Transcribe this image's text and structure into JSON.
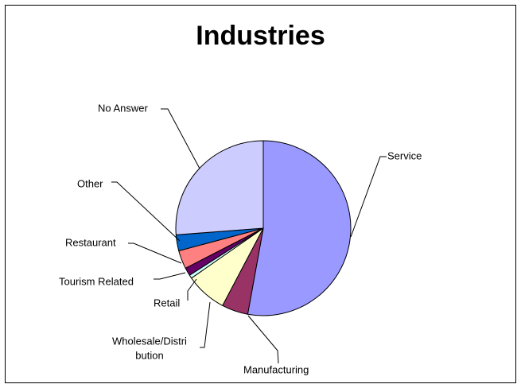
{
  "chart_data": {
    "type": "pie",
    "title": "Industries",
    "categories": [
      "Service",
      "Manufacturing",
      "Wholesale/Distribution",
      "Retail",
      "Tourism Related",
      "Restaurant",
      "Other",
      "No Answer"
    ],
    "values": [
      50.0,
      4.6,
      7.2,
      0.6,
      1.4,
      3.2,
      2.8,
      24.8
    ],
    "colors": [
      "#9999FF",
      "#993366",
      "#FFFFCC",
      "#CCFFFF",
      "#660066",
      "#FF8080",
      "#0066CC",
      "#CCCCFF"
    ],
    "slice_edge_color": "#000000",
    "labels": [
      [
        "Service"
      ],
      [
        "Manufacturing"
      ],
      [
        "Wholesale/Distri",
        "bution"
      ],
      [
        "Retail"
      ],
      [
        "Tourism Related"
      ],
      [
        "Restaurant"
      ],
      [
        "Other"
      ],
      [
        "No Answer"
      ]
    ],
    "legend": "none",
    "start_angle": "12 o'clock",
    "direction": "clockwise"
  }
}
